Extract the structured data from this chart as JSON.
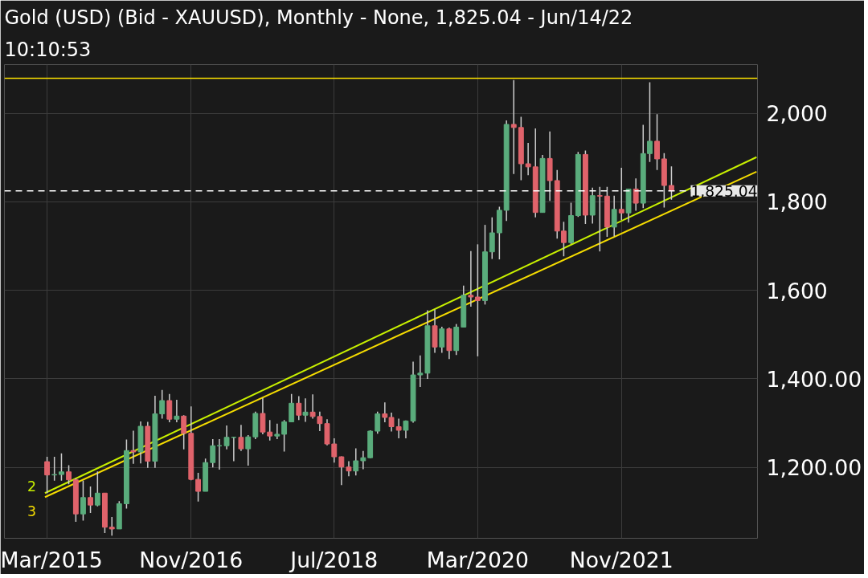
{
  "chart_data": {
    "type": "candlestick",
    "title": "Gold (USD) (Bid - XAUUSD),  Monthly - None, 1,825.04 - Jun/14/22",
    "subtitle": "10:10:53",
    "x": [
      "2015-03",
      "2015-04",
      "2015-05",
      "2015-06",
      "2015-07",
      "2015-08",
      "2015-09",
      "2015-10",
      "2015-11",
      "2015-12",
      "2016-01",
      "2016-02",
      "2016-03",
      "2016-04",
      "2016-05",
      "2016-06",
      "2016-07",
      "2016-08",
      "2016-09",
      "2016-10",
      "2016-11",
      "2016-12",
      "2017-01",
      "2017-02",
      "2017-03",
      "2017-04",
      "2017-05",
      "2017-06",
      "2017-07",
      "2017-08",
      "2017-09",
      "2017-10",
      "2017-11",
      "2017-12",
      "2018-01",
      "2018-02",
      "2018-03",
      "2018-04",
      "2018-05",
      "2018-06",
      "2018-07",
      "2018-08",
      "2018-09",
      "2018-10",
      "2018-11",
      "2018-12",
      "2019-01",
      "2019-02",
      "2019-03",
      "2019-04",
      "2019-05",
      "2019-06",
      "2019-07",
      "2019-08",
      "2019-09",
      "2019-10",
      "2019-11",
      "2019-12",
      "2020-01",
      "2020-02",
      "2020-03",
      "2020-04",
      "2020-05",
      "2020-06",
      "2020-07",
      "2020-08",
      "2020-09",
      "2020-10",
      "2020-11",
      "2020-12",
      "2021-01",
      "2021-02",
      "2021-03",
      "2021-04",
      "2021-05",
      "2021-06",
      "2021-07",
      "2021-08",
      "2021-09",
      "2021-10",
      "2021-11",
      "2021-12",
      "2022-01",
      "2022-02",
      "2022-03",
      "2022-04",
      "2022-05",
      "2022-06"
    ],
    "ohlc": [
      [
        1213,
        1224,
        1142,
        1183
      ],
      [
        1183,
        1224,
        1170,
        1184
      ],
      [
        1184,
        1232,
        1170,
        1190
      ],
      [
        1190,
        1205,
        1162,
        1172
      ],
      [
        1172,
        1175,
        1077,
        1095
      ],
      [
        1095,
        1170,
        1080,
        1132
      ],
      [
        1132,
        1157,
        1097,
        1115
      ],
      [
        1115,
        1191,
        1112,
        1142
      ],
      [
        1142,
        1142,
        1052,
        1065
      ],
      [
        1065,
        1088,
        1046,
        1061
      ],
      [
        1061,
        1124,
        1061,
        1118
      ],
      [
        1118,
        1263,
        1107,
        1238
      ],
      [
        1238,
        1283,
        1208,
        1235
      ],
      [
        1235,
        1304,
        1209,
        1293
      ],
      [
        1293,
        1303,
        1199,
        1214
      ],
      [
        1214,
        1362,
        1199,
        1321
      ],
      [
        1321,
        1375,
        1310,
        1351
      ],
      [
        1351,
        1366,
        1302,
        1309
      ],
      [
        1309,
        1353,
        1302,
        1316
      ],
      [
        1316,
        1318,
        1241,
        1277
      ],
      [
        1277,
        1338,
        1171,
        1173
      ],
      [
        1173,
        1188,
        1123,
        1146
      ],
      [
        1146,
        1220,
        1146,
        1211
      ],
      [
        1211,
        1264,
        1200,
        1249
      ],
      [
        1249,
        1264,
        1195,
        1249
      ],
      [
        1249,
        1295,
        1241,
        1268
      ],
      [
        1268,
        1269,
        1214,
        1268
      ],
      [
        1268,
        1296,
        1237,
        1242
      ],
      [
        1242,
        1273,
        1204,
        1269
      ],
      [
        1269,
        1326,
        1264,
        1322
      ],
      [
        1322,
        1357,
        1275,
        1280
      ],
      [
        1280,
        1307,
        1261,
        1271
      ],
      [
        1271,
        1299,
        1264,
        1275
      ],
      [
        1275,
        1307,
        1236,
        1303
      ],
      [
        1303,
        1366,
        1303,
        1345
      ],
      [
        1345,
        1361,
        1307,
        1318
      ],
      [
        1318,
        1356,
        1303,
        1325
      ],
      [
        1325,
        1365,
        1310,
        1315
      ],
      [
        1315,
        1326,
        1282,
        1299
      ],
      [
        1299,
        1309,
        1250,
        1253
      ],
      [
        1253,
        1266,
        1211,
        1224
      ],
      [
        1224,
        1225,
        1160,
        1201
      ],
      [
        1201,
        1214,
        1180,
        1192
      ],
      [
        1192,
        1243,
        1182,
        1215
      ],
      [
        1215,
        1237,
        1196,
        1222
      ],
      [
        1222,
        1284,
        1221,
        1282
      ],
      [
        1282,
        1326,
        1276,
        1321
      ],
      [
        1321,
        1347,
        1302,
        1313
      ],
      [
        1313,
        1324,
        1281,
        1292
      ],
      [
        1292,
        1310,
        1266,
        1284
      ],
      [
        1284,
        1306,
        1266,
        1305
      ],
      [
        1305,
        1439,
        1301,
        1409
      ],
      [
        1409,
        1453,
        1382,
        1413
      ],
      [
        1413,
        1555,
        1400,
        1520
      ],
      [
        1520,
        1557,
        1459,
        1472
      ],
      [
        1472,
        1518,
        1459,
        1513
      ],
      [
        1513,
        1516,
        1445,
        1464
      ],
      [
        1464,
        1524,
        1454,
        1517
      ],
      [
        1517,
        1611,
        1517,
        1589
      ],
      [
        1589,
        1689,
        1563,
        1585
      ],
      [
        1585,
        1704,
        1451,
        1577
      ],
      [
        1577,
        1748,
        1568,
        1687
      ],
      [
        1687,
        1765,
        1671,
        1730
      ],
      [
        1730,
        1789,
        1670,
        1781
      ],
      [
        1781,
        1984,
        1757,
        1975
      ],
      [
        1975,
        2075,
        1863,
        1968
      ],
      [
        1968,
        1992,
        1849,
        1886
      ],
      [
        1886,
        1933,
        1860,
        1879
      ],
      [
        1879,
        1966,
        1765,
        1776
      ],
      [
        1776,
        1906,
        1776,
        1898
      ],
      [
        1898,
        1959,
        1802,
        1848
      ],
      [
        1848,
        1872,
        1717,
        1734
      ],
      [
        1734,
        1755,
        1677,
        1708
      ],
      [
        1708,
        1798,
        1705,
        1769
      ],
      [
        1769,
        1913,
        1766,
        1907
      ],
      [
        1907,
        1916,
        1750,
        1770
      ],
      [
        1770,
        1832,
        1751,
        1814
      ],
      [
        1814,
        1834,
        1688,
        1813
      ],
      [
        1813,
        1834,
        1721,
        1743
      ],
      [
        1743,
        1814,
        1722,
        1783
      ],
      [
        1783,
        1877,
        1759,
        1775
      ],
      [
        1775,
        1830,
        1753,
        1829
      ],
      [
        1829,
        1853,
        1780,
        1797
      ],
      [
        1797,
        1974,
        1786,
        1909
      ],
      [
        1909,
        2070,
        1890,
        1937
      ],
      [
        1937,
        1998,
        1872,
        1897
      ],
      [
        1897,
        1910,
        1787,
        1837
      ],
      [
        1837,
        1880,
        1805,
        1825
      ]
    ],
    "colors": [
      "#e0636b",
      "#5aac7c",
      "#5aac7c",
      "#e0636b",
      "#e0636b",
      "#5aac7c",
      "#e0636b",
      "#5aac7c",
      "#e0636b",
      "#e0636b",
      "#5aac7c",
      "#5aac7c",
      "#e0636b",
      "#5aac7c",
      "#e0636b",
      "#5aac7c",
      "#5aac7c",
      "#e0636b",
      "#5aac7c",
      "#e0636b",
      "#e0636b",
      "#e0636b",
      "#5aac7c",
      "#5aac7c",
      "#5aac7c",
      "#5aac7c",
      "#5aac7c",
      "#e0636b",
      "#5aac7c",
      "#5aac7c",
      "#e0636b",
      "#e0636b",
      "#5aac7c",
      "#5aac7c",
      "#5aac7c",
      "#e0636b",
      "#5aac7c",
      "#e0636b",
      "#e0636b",
      "#e0636b",
      "#e0636b",
      "#e0636b",
      "#e0636b",
      "#5aac7c",
      "#5aac7c",
      "#5aac7c",
      "#5aac7c",
      "#e0636b",
      "#e0636b",
      "#e0636b",
      "#5aac7c",
      "#5aac7c",
      "#5aac7c",
      "#5aac7c",
      "#e0636b",
      "#5aac7c",
      "#e0636b",
      "#5aac7c",
      "#5aac7c",
      "#e0636b",
      "#e0636b",
      "#5aac7c",
      "#5aac7c",
      "#5aac7c",
      "#5aac7c",
      "#e0636b",
      "#e0636b",
      "#e0636b",
      "#e0636b",
      "#5aac7c",
      "#e0636b",
      "#e0636b",
      "#e0636b",
      "#5aac7c",
      "#5aac7c",
      "#e0636b",
      "#5aac7c",
      "#e0636b",
      "#e0636b",
      "#5aac7c",
      "#e0636b",
      "#5aac7c",
      "#e0636b",
      "#5aac7c",
      "#5aac7c",
      "#e0636b",
      "#e0636b",
      "#e0636b"
    ],
    "series": [
      {
        "type": "line",
        "name": "2",
        "color": "#c8f000",
        "x": [
          "2015-02-20",
          "2023-05-28"
        ],
        "values": [
          1142,
          1901
        ]
      },
      {
        "type": "line",
        "name": "3",
        "color": "#f5dc00",
        "x": [
          "2015-02-20",
          "2023-05-28"
        ],
        "values": [
          1133,
          1868
        ]
      }
    ],
    "ref_lines": [
      {
        "axis": "y",
        "value": 1825.04,
        "label": "1,825.04",
        "color": "#ffffff",
        "line_style": "dashed"
      },
      {
        "axis": "y",
        "value": 2079,
        "color": "#f5dc00",
        "line_style": "solid"
      }
    ],
    "xlim": [
      "2014-09-01",
      "2023-06-01"
    ],
    "xticks": [
      {
        "value": "2015-03-01",
        "label": "Mar/2015"
      },
      {
        "value": "2016-11-01",
        "label": "Nov/2016"
      },
      {
        "value": "2018-07-01",
        "label": "Jul/2018"
      },
      {
        "value": "2020-03-01",
        "label": "Mar/2020"
      },
      {
        "value": "2021-11-01",
        "label": "Nov/2021"
      }
    ],
    "ylim": [
      1040,
      2110
    ],
    "yticks": [
      {
        "value": 1200,
        "label": "1,200.00"
      },
      {
        "value": 1400,
        "label": "1,400.00"
      },
      {
        "value": 1600,
        "label": "1,600"
      },
      {
        "value": 1800,
        "label": "1,800"
      },
      {
        "value": 2000,
        "label": "2,000"
      }
    ],
    "grid": true
  }
}
